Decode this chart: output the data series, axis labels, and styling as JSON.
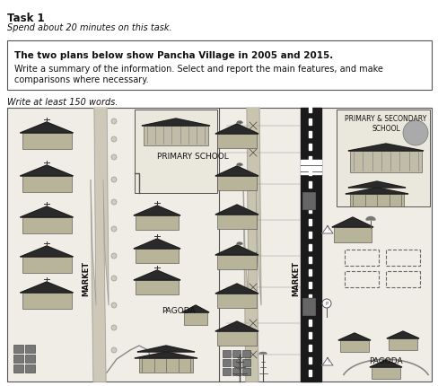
{
  "title": "Task 1",
  "subtitle": "Spend about 20 minutes on this task.",
  "box_line1": "The two plans below show Pancha Village in 2005 and 2015.",
  "box_line2": "Write a summary of the information. Select and report the main features, and make",
  "box_line3": "comparisons where necessary.",
  "footer": "Write at least 150 words.",
  "bg_color": "#ffffff",
  "map_bg": "#f0ede6",
  "label_2005_left": "MARKET",
  "label_2015_left": "MARKET",
  "label_pagoda_2005": "PAGODA",
  "label_pagoda_2015": "PAGODA",
  "label_school_2005": "PRIMARY SCHOOL",
  "label_school_2015": "PRIMARY & SECONDARY\nSCHOOL",
  "road_color_dirt": "#c8c0b0",
  "road_color_paved": "#1a1a1a",
  "road_edge": "#888888",
  "house_wall": "#b8b49a",
  "house_roof": "#2a2a2a",
  "school_wall": "#c8c4aa",
  "pagoda_wall": "#b8b49a",
  "market_dark": "#555555",
  "tree_ring_color": "#999999",
  "dashed_box_color": "#666666",
  "text_dark": "#111111"
}
